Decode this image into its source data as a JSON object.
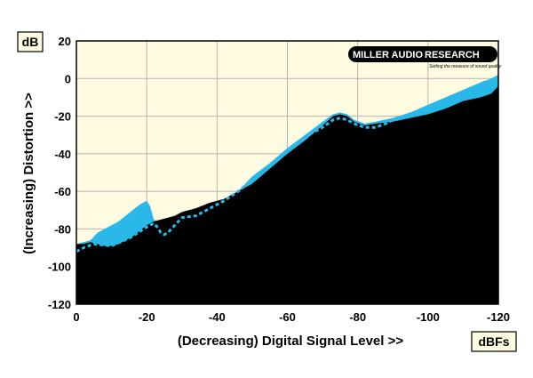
{
  "logo": {
    "text_left": "MILLER AUDIO",
    "text_right": "RESEARCH",
    "tagline": "Setting the measure of sound quality"
  },
  "chart_data": {
    "type": "area",
    "xlabel": "(Decreasing) Digital Signal Level >>",
    "ylabel": "(Increasing) Distortion >>",
    "y_unit": "dB",
    "x_unit": "dBFs",
    "xlim": [
      0,
      -120
    ],
    "ylim": [
      -120,
      20
    ],
    "x_ticks": [
      0,
      -20,
      -40,
      -60,
      -80,
      -100,
      -120
    ],
    "y_ticks": [
      20,
      0,
      -20,
      -40,
      -60,
      -80,
      -100,
      -120
    ],
    "grid": true,
    "colors": {
      "plot_background": "#fffbe0",
      "black_series": "#000000",
      "blue_series": "#29b8e8",
      "dashed_line": "#29b8e8",
      "grid": "#b4b4b4"
    },
    "series": [
      {
        "color": "#29b8e8",
        "style": "area",
        "x": [
          0,
          -4,
          -6,
          -8,
          -10,
          -12,
          -14,
          -16,
          -18,
          -19,
          -20,
          -21,
          -22,
          -24,
          -26,
          -28,
          -30,
          -34,
          -38,
          -42,
          -46,
          -50,
          -55,
          -60,
          -65,
          -70,
          -73,
          -75,
          -77,
          -79,
          -82,
          -85,
          -90,
          -95,
          -100,
          -105,
          -110,
          -115,
          -118,
          -120
        ],
        "y": [
          -88,
          -86,
          -82,
          -80,
          -78,
          -76,
          -73,
          -70,
          -67,
          -66,
          -65,
          -68,
          -75,
          -77,
          -76,
          -75,
          -73,
          -70,
          -68,
          -65,
          -60,
          -52,
          -45,
          -37,
          -30,
          -23,
          -19,
          -18,
          -19,
          -22,
          -24,
          -23,
          -21,
          -18,
          -14,
          -10,
          -6,
          -2,
          0,
          2
        ]
      },
      {
        "color": "#000000",
        "style": "area",
        "x": [
          0,
          -2,
          -4,
          -6,
          -8,
          -10,
          -12,
          -14,
          -16,
          -18,
          -20,
          -22,
          -24,
          -26,
          -28,
          -30,
          -34,
          -38,
          -42,
          -46,
          -50,
          -55,
          -60,
          -65,
          -70,
          -73,
          -75,
          -77,
          -79,
          -82,
          -85,
          -90,
          -95,
          -100,
          -105,
          -110,
          -115,
          -118,
          -120
        ],
        "y": [
          -88,
          -88,
          -87,
          -88,
          -89,
          -89,
          -88,
          -86,
          -84,
          -81,
          -78,
          -76,
          -75,
          -74,
          -73,
          -71,
          -69,
          -66,
          -64,
          -60,
          -56,
          -48,
          -40,
          -33,
          -25,
          -20,
          -19,
          -20,
          -23,
          -25,
          -24,
          -23,
          -21,
          -19,
          -16,
          -12,
          -10,
          -8,
          -4
        ]
      },
      {
        "color": "#29b8e8",
        "style": "dashed",
        "x": [
          0,
          -2,
          -5,
          -10,
          -15,
          -20,
          -22,
          -23,
          -24,
          -25,
          -26,
          -28,
          -30,
          -34,
          -38,
          -42,
          -46,
          -50,
          -55,
          -60,
          -65,
          -70,
          -73,
          -75,
          -77,
          -79,
          -82,
          -85,
          -88,
          -90
        ],
        "y": [
          -92,
          -90,
          -88,
          -89,
          -85,
          -79,
          -77,
          -79,
          -82,
          -83,
          -82,
          -78,
          -74,
          -73,
          -69,
          -65,
          -60,
          -54,
          -46,
          -38,
          -31,
          -26,
          -22,
          -21,
          -22,
          -24,
          -26,
          -26,
          -24,
          -22
        ]
      }
    ]
  }
}
